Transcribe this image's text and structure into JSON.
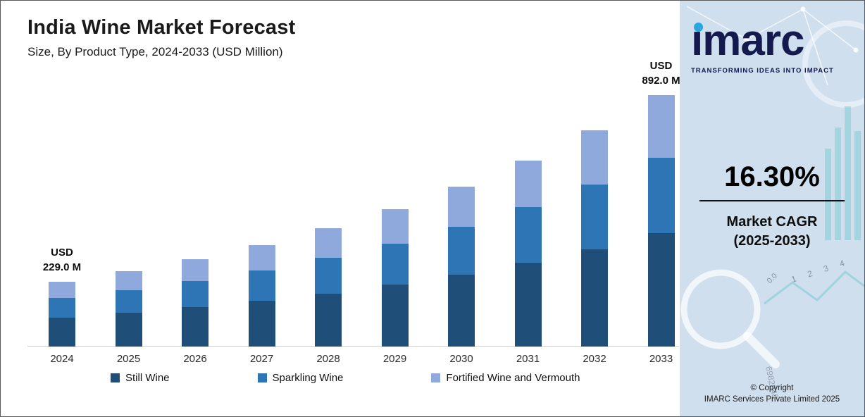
{
  "header": {
    "title": "India Wine Market Forecast",
    "subtitle": "Size, By Product Type, 2024-2033 (USD Million)"
  },
  "chart_data": {
    "type": "bar",
    "stacked": true,
    "title": "India Wine Market Forecast",
    "subtitle": "Size, By Product Type, 2024-2033 (USD Million)",
    "unit": "USD Million",
    "categories": [
      "2024",
      "2025",
      "2026",
      "2027",
      "2028",
      "2029",
      "2030",
      "2031",
      "2032",
      "2033"
    ],
    "series": [
      {
        "name": "Still Wine",
        "color": "#1f4e79",
        "values": [
          103.1,
          119.9,
          139.5,
          162.2,
          188.7,
          219.5,
          255.2,
          296.8,
          345.2,
          401.4
        ]
      },
      {
        "name": "Sparkling Wine",
        "color": "#2e75b6",
        "values": [
          68.7,
          80.0,
          93.0,
          108.2,
          125.8,
          146.3,
          170.2,
          197.9,
          230.1,
          267.6
        ]
      },
      {
        "name": "Fortified Wine and Vermouth",
        "color": "#8fa9dc",
        "values": [
          57.2,
          66.6,
          77.5,
          90.1,
          104.8,
          121.9,
          141.8,
          164.9,
          191.8,
          223.0
        ]
      }
    ],
    "totals": [
      229.0,
      266.5,
      310.0,
      360.5,
      419.3,
      487.7,
      567.2,
      659.6,
      767.1,
      892.0
    ],
    "annotations": [
      {
        "category": "2024",
        "line1": "USD",
        "line2": "229.0 M"
      },
      {
        "category": "2033",
        "line1": "USD",
        "line2": "892.0 M"
      }
    ],
    "ylim": [
      0,
      950
    ],
    "grid": false,
    "legend_position": "bottom"
  },
  "sidebar": {
    "logo_text": "imarc",
    "tagline": "TRANSFORMING IDEAS INTO IMPACT",
    "cagr_value": "16.30%",
    "cagr_label_line1": "Market CAGR",
    "cagr_label_line2": "(2025-2033)",
    "copyright_line1": "© Copyright",
    "copyright_line2": "IMARC Services Private Limited 2025",
    "decor": {
      "number_zero": "0.0",
      "numbers_diagonal": "1 2 3 4",
      "number_serial": "6982048"
    }
  }
}
